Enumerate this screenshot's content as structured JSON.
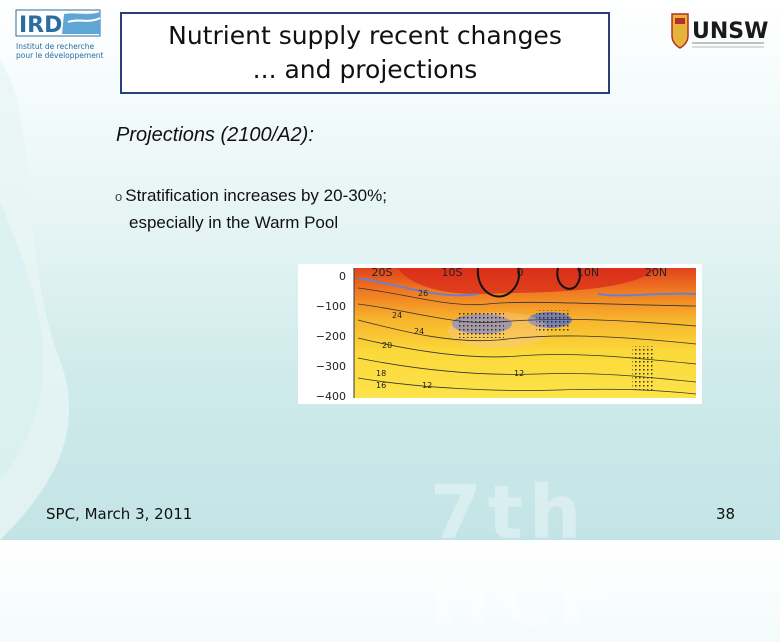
{
  "header": {
    "title_line1": "Nutrient supply recent changes",
    "title_line2": "... and projections"
  },
  "logos": {
    "ird_line1": "Institut de recherche",
    "ird_line2": "pour le développement",
    "unsw": "UNSW"
  },
  "content": {
    "subtitle": "Projections (2100/A2):",
    "bullet_mark": "o",
    "bullet_line1": "Stratification increases by 20-30%;",
    "bullet_line2": "especially in the Warm Pool"
  },
  "figure": {
    "x_ticks": [
      "20S",
      "10S",
      "0",
      "10N",
      "20N"
    ],
    "y_ticks": [
      "0",
      "−100",
      "−200",
      "−300",
      "−400"
    ],
    "contour_labels": [
      "26",
      "24",
      "24",
      "20",
      "18",
      "16",
      "12",
      "12"
    ]
  },
  "footer": {
    "left": "SPC, March 3, 2011",
    "page": "38",
    "watermark": "7th HCF"
  },
  "colors": {
    "title_border": "#2c3e7a",
    "ird_blue": "#2a6ea0",
    "unsw_red": "#b5302a"
  }
}
